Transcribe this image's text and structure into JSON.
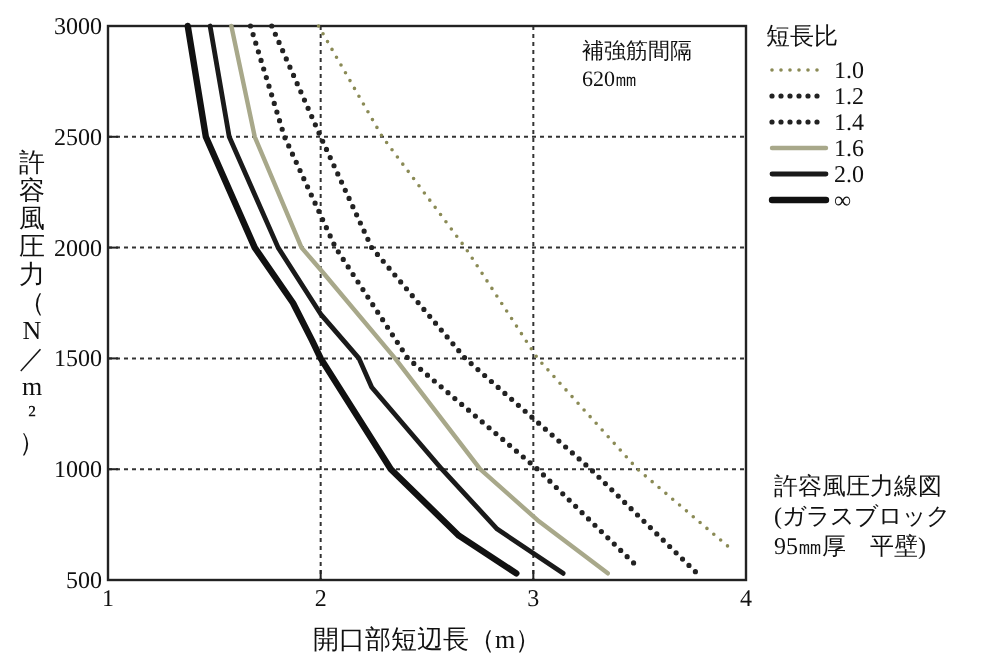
{
  "chart_data": {
    "type": "line",
    "xlabel": "開口部短辺長（m）",
    "ylabel": "許容風圧力（N／m²）",
    "legend_title": "短長比",
    "legend": "top right",
    "grid": true,
    "xlim": [
      1,
      4
    ],
    "ylim": [
      500,
      3000
    ],
    "xticks": [
      1,
      2,
      3,
      4
    ],
    "yticks": [
      500,
      1000,
      1500,
      2000,
      2500,
      3000
    ],
    "annotations": [
      "補強筋間隔\n620㎜",
      "許容風圧力線図\n(ガラスブロック\n95㎜厚　平壁)"
    ],
    "series": [
      {
        "name": "1.0",
        "color": "#8a8a55",
        "line_style": "dotted",
        "x": [
          1.99,
          2.29,
          2.68,
          3.02,
          3.49,
          3.93
        ],
        "values": [
          3000,
          2500,
          2000,
          1500,
          1000,
          640
        ]
      },
      {
        "name": "1.2",
        "color": "#222222",
        "line_style": "dotted",
        "x": [
          1.77,
          2.0,
          2.24,
          2.68,
          3.27,
          3.77
        ],
        "values": [
          3000,
          2500,
          2000,
          1500,
          1000,
          530
        ]
      },
      {
        "name": "1.4",
        "color": "#222222",
        "line_style": "dotted",
        "x": [
          1.67,
          1.83,
          2.07,
          2.41,
          3.02,
          3.5
        ],
        "values": [
          3000,
          2500,
          2000,
          1500,
          1000,
          550
        ]
      },
      {
        "name": "1.6",
        "color": "#a8a88a",
        "line_style": "solid",
        "x": [
          1.58,
          1.69,
          1.91,
          2.0,
          2.35,
          2.75,
          3.02,
          3.35
        ],
        "values": [
          3000,
          2500,
          2000,
          1900,
          1500,
          1000,
          770,
          530
        ]
      },
      {
        "name": "2.0",
        "color": "#1a1a1a",
        "line_style": "solid",
        "x": [
          1.48,
          1.57,
          1.8,
          2.0,
          2.18,
          2.24,
          2.57,
          2.83,
          3.14
        ],
        "values": [
          3000,
          2500,
          2000,
          1700,
          1500,
          1370,
          1000,
          730,
          530
        ]
      },
      {
        "name": "∞",
        "color": "#111111",
        "line_style": "solid",
        "x": [
          1.375,
          1.46,
          1.69,
          1.87,
          1.96,
          2.0,
          2.33,
          2.65,
          2.92
        ],
        "values": [
          3000,
          2500,
          2000,
          1750,
          1580,
          1500,
          1000,
          700,
          530
        ]
      }
    ]
  }
}
